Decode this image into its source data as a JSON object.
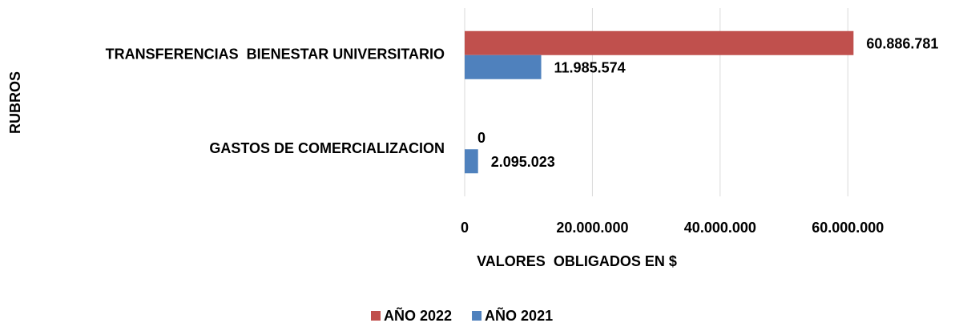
{
  "chart_data": {
    "type": "bar",
    "orientation": "horizontal",
    "x_label": "VALORES  OBLIGADOS EN $",
    "y_label": "RUBROS",
    "categories": [
      "TRANSFERENCIAS  BIENESTAR UNIVERSITARIO",
      "GASTOS DE COMERCIALIZACION"
    ],
    "series": [
      {
        "name": "AÑO 2022",
        "color": "#c0504d",
        "values": [
          60886781,
          0
        ],
        "value_labels": [
          "60.886.781",
          "0"
        ]
      },
      {
        "name": "AÑO 2021",
        "color": "#4f81bd",
        "values": [
          11985574,
          2095023
        ],
        "value_labels": [
          "11.985.574",
          "2.095.023"
        ]
      }
    ],
    "xlim": [
      0,
      70000000
    ],
    "xticks": [
      0,
      {
        "value": 20000000,
        "label": "20.000.000"
      },
      {
        "value": 40000000,
        "label": "40.000.000"
      },
      {
        "value": 60000000,
        "label": "60.000.000"
      }
    ],
    "grid": true,
    "legend": "bottom"
  }
}
